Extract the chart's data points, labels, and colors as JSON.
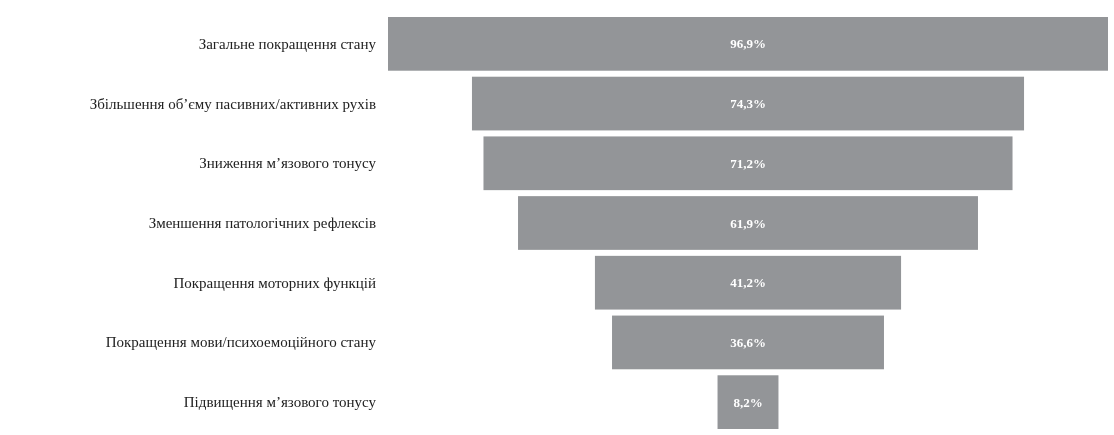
{
  "chart_data": {
    "type": "other",
    "categories": [
      "Загальне покращення стану",
      "Збільшення об’єму пасивних/активних рухів",
      "Зниження м’язового тонусу",
      "Зменшення патологічних рефлексів",
      "Покращення моторних функцій",
      "Покращення мови/психоемоційного стану",
      "Підвищення м’язового тонусу"
    ],
    "values": [
      96.9,
      74.3,
      71.2,
      61.9,
      41.2,
      36.6,
      8.2
    ],
    "color": "#939598",
    "value_labels": [
      "96,9%",
      "74,3%",
      "71,2%",
      "61,9%",
      "41,2%",
      "36,6%",
      "8,2%"
    ]
  }
}
